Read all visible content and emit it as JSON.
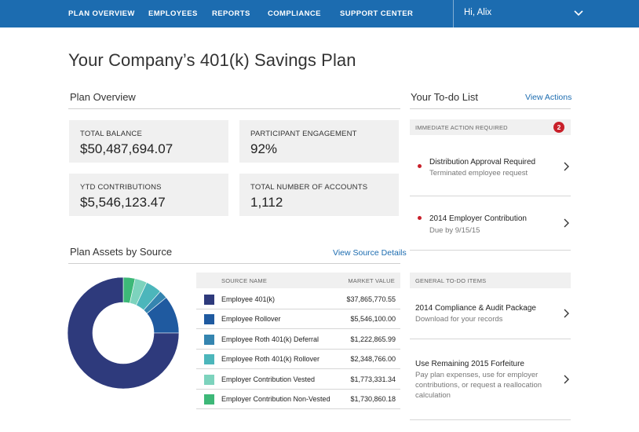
{
  "nav": {
    "items": [
      "PLAN OVERVIEW",
      "EMPLOYEES",
      "REPORTS",
      "COMPLIANCE",
      "SUPPORT CENTER"
    ],
    "greeting": "Hi, Alix"
  },
  "page": {
    "title": "Your Company’s 401(k) Savings Plan"
  },
  "overview": {
    "heading": "Plan Overview",
    "stats": [
      {
        "label": "TOTAL BALANCE",
        "value": "$50,487,694.07"
      },
      {
        "label": "PARTICIPANT ENGAGEMENT",
        "value": "92%"
      },
      {
        "label": "YTD CONTRIBUTIONS",
        "value": "$5,546,123.47"
      },
      {
        "label": "TOTAL NUMBER OF ACCOUNTS",
        "value": "1,112"
      }
    ]
  },
  "assets": {
    "heading": "Plan Assets by Source",
    "link": "View Source Details",
    "col_source": "SOURCE NAME",
    "col_value": "MARKET VALUE",
    "rows": [
      {
        "name": "Employee 401(k)",
        "value": "$37,865,770.55",
        "amount": 37865770.55,
        "color": "#2e3a7c"
      },
      {
        "name": "Employee Rollover",
        "value": "$5,546,100.00",
        "amount": 5546100.0,
        "color": "#1f5aa0"
      },
      {
        "name": "Employee Roth 401(k) Deferral",
        "value": "$1,222,865.99",
        "amount": 1222865.99,
        "color": "#3585b0"
      },
      {
        "name": "Employee Roth 401(k) Rollover",
        "value": "$2,348,766.00",
        "amount": 2348766.0,
        "color": "#4cb6bb"
      },
      {
        "name": "Employer Contribution Vested",
        "value": "$1,773,331.34",
        "amount": 1773331.34,
        "color": "#7dd3bd"
      },
      {
        "name": "Employer Contribution Non-Vested",
        "value": "$1,730,860.18",
        "amount": 1730860.18,
        "color": "#3db878"
      }
    ]
  },
  "todo": {
    "heading": "Your To-do List",
    "link": "View Actions",
    "immediate_label": "IMMEDIATE ACTION REQUIRED",
    "immediate_count": "2",
    "immediate_items": [
      {
        "title": "Distribution Approval Required",
        "sub": "Terminated employee request"
      },
      {
        "title": "2014 Employer Contribution",
        "sub": "Due by 9/15/15"
      }
    ],
    "general_label": "GENERAL TO-DO ITEMS",
    "general_items": [
      {
        "title": "2014 Compliance & Audit Package",
        "sub": "Download for your records"
      },
      {
        "title": "Use Remaining 2015 Forfeiture",
        "sub": "Pay plan expenses, use for employer contributions, or request a reallocation calculation"
      }
    ]
  },
  "colors": {
    "nav": "#1c6cb0",
    "link": "#1c6cb0",
    "alert": "#c8202a"
  }
}
